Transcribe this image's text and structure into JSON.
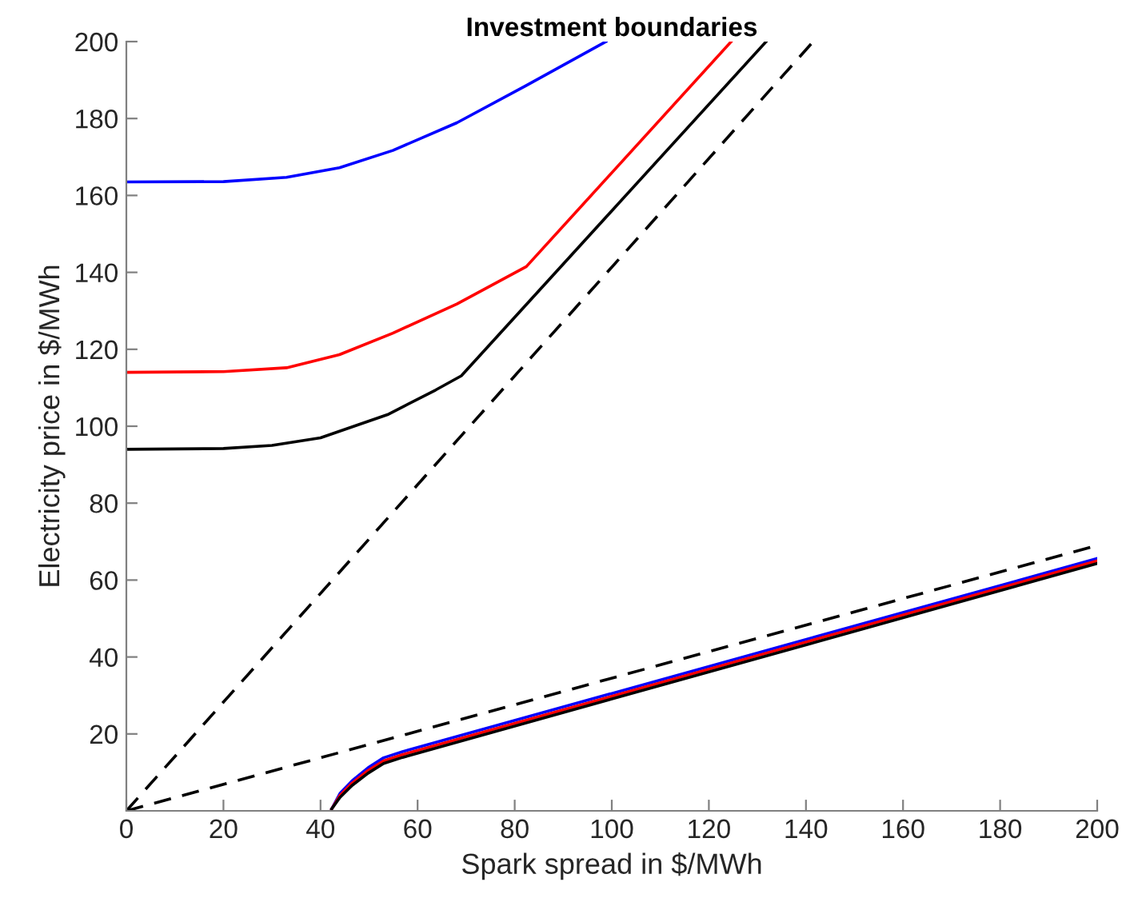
{
  "chart_data": {
    "type": "line",
    "title": "Investment boundaries",
    "xlabel": "Spark spread in $/MWh",
    "ylabel": "Electricity price in $/MWh",
    "xlim": [
      0,
      200
    ],
    "ylim": [
      0,
      200
    ],
    "xticks": [
      0,
      20,
      40,
      60,
      80,
      100,
      120,
      140,
      160,
      180,
      200
    ],
    "yticks": [
      20,
      40,
      60,
      80,
      100,
      120,
      140,
      160,
      180,
      200
    ],
    "grid": false,
    "marker": "none",
    "series": [
      {
        "color": "#0000ff",
        "x": [
          0,
          20,
          33,
          43.9,
          54.9,
          68.1,
          82.4,
          98.8
        ],
        "values": [
          163.5,
          163.6,
          164.7,
          167.2,
          171.7,
          178.9,
          188.6,
          200
        ]
      },
      {
        "color": "#ff0000",
        "x": [
          0,
          20,
          33,
          43.9,
          54.9,
          68.1,
          82.4,
          124.6
        ],
        "values": [
          114,
          114.2,
          115.2,
          118.6,
          124.2,
          131.8,
          141.5,
          200
        ]
      },
      {
        "color": "#000000",
        "x": [
          0,
          20,
          30,
          40,
          53.8,
          63.7,
          69,
          131.8
        ],
        "values": [
          94,
          94.2,
          95,
          97,
          103,
          109.4,
          113.1,
          200
        ]
      },
      {
        "color": "#000000",
        "line_style": "dashed",
        "x": [
          0,
          141.5
        ],
        "values": [
          0,
          200
        ]
      },
      {
        "color": "#0000ff",
        "x": [
          42.3,
          44,
          46.5,
          49.8,
          53,
          56.9,
          200
        ],
        "values": [
          0.5,
          4.5,
          7.8,
          11.2,
          13.8,
          15.4,
          65.6
        ]
      },
      {
        "color": "#ff0000",
        "x": [
          42.3,
          44,
          46.5,
          49.8,
          53,
          56.9,
          200
        ],
        "values": [
          0.5,
          4,
          7.2,
          10.5,
          13,
          14.6,
          65
        ]
      },
      {
        "color": "#000000",
        "x": [
          42.3,
          44,
          46.5,
          49.8,
          53,
          56.9,
          200
        ],
        "values": [
          0.5,
          3.5,
          6.6,
          9.8,
          12.3,
          13.9,
          64.3
        ]
      },
      {
        "color": "#000000",
        "line_style": "dashed",
        "x": [
          0,
          200
        ],
        "values": [
          0,
          69
        ]
      }
    ]
  }
}
